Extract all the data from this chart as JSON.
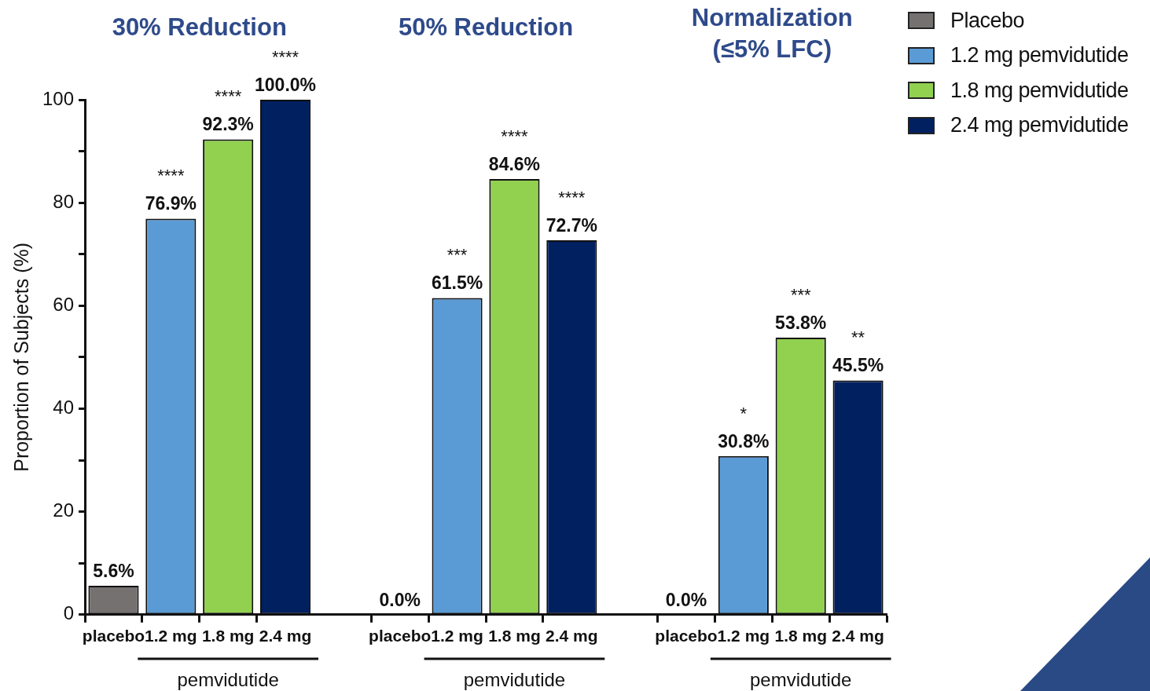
{
  "chart_data": {
    "type": "bar",
    "annotations": [
      "30% Reduction",
      "50% Reduction",
      "Normalization (≤5% LFC)",
      "pemvidutide",
      "pemvidutide",
      "pemvidutide",
      "****",
      "****",
      "****",
      "***",
      "****",
      "****",
      "*",
      "***",
      "**"
    ],
    "ylabel": "Proportion of Subjects (%)",
    "categories": [
      "placebo",
      "1.2 mg",
      "1.8 mg",
      "2.4 mg",
      null,
      "placebo",
      "1.2 mg",
      "1.8 mg",
      "2.4 mg",
      null,
      "placebo",
      "1.2 mg",
      "1.8 mg",
      "2.4 mg"
    ],
    "series": [
      {
        "name": "Placebo",
        "color": "#757171",
        "values": [
          5.6,
          null,
          null,
          null,
          null,
          0.0,
          null,
          null,
          null,
          null,
          0.0,
          null,
          null,
          null
        ],
        "value_labels": [
          "5.6%",
          null,
          null,
          null,
          null,
          "0.0%",
          null,
          null,
          null,
          null,
          "0.0%",
          null,
          null,
          null
        ]
      },
      {
        "name": "1.2 mg pemvidutide",
        "color": "#5b9bd5",
        "values": [
          null,
          76.9,
          null,
          null,
          null,
          null,
          61.5,
          null,
          null,
          null,
          null,
          30.8,
          null,
          null
        ],
        "value_labels": [
          null,
          "76.9%",
          null,
          null,
          null,
          null,
          "61.5%",
          null,
          null,
          null,
          null,
          "30.8%",
          null,
          null
        ]
      },
      {
        "name": "1.8 mg pemvidutide",
        "color": "#92d050",
        "values": [
          null,
          null,
          92.3,
          null,
          null,
          null,
          null,
          84.6,
          null,
          null,
          null,
          null,
          53.8,
          null
        ],
        "value_labels": [
          null,
          null,
          "92.3%",
          null,
          null,
          null,
          null,
          "84.6%",
          null,
          null,
          null,
          null,
          "53.8%",
          null
        ]
      },
      {
        "name": "2.4 mg pemvidutide",
        "color": "#002060",
        "values": [
          null,
          null,
          null,
          100.0,
          null,
          null,
          null,
          null,
          72.7,
          null,
          null,
          null,
          null,
          45.5
        ],
        "value_labels": [
          null,
          null,
          null,
          "100.0%",
          null,
          null,
          null,
          null,
          "72.7%",
          null,
          null,
          null,
          null,
          "45.5%"
        ]
      }
    ],
    "ylim": [
      0,
      100
    ],
    "yticks": [
      0,
      {
        "value": 10,
        "label": null
      },
      20,
      {
        "value": 30,
        "label": null
      },
      40,
      {
        "value": 50,
        "label": null
      },
      60,
      {
        "value": 70,
        "label": null
      },
      80,
      {
        "value": 90,
        "label": null
      },
      100
    ],
    "grid": false,
    "legend": "top right"
  }
}
